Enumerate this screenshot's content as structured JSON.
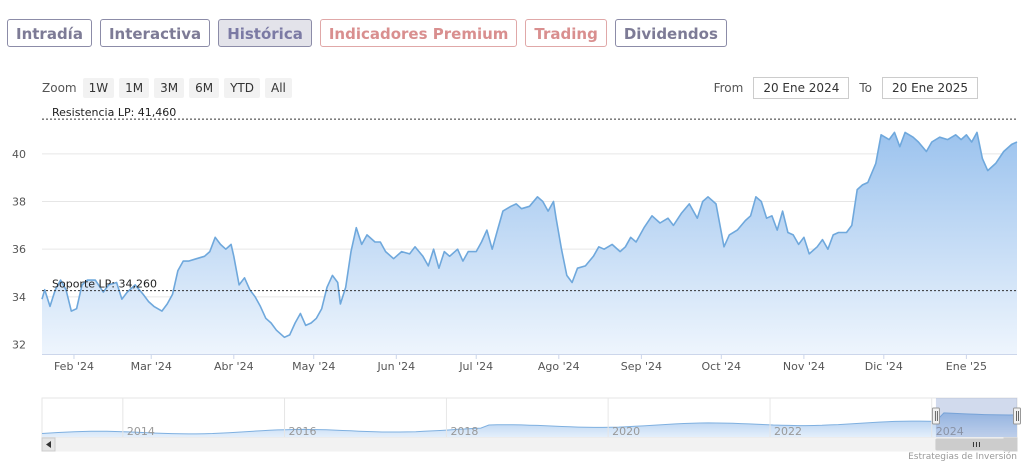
{
  "tabs": [
    {
      "label": "Intradía",
      "kind": "normal"
    },
    {
      "label": "Interactiva",
      "kind": "normal"
    },
    {
      "label": "Histórica",
      "kind": "active"
    },
    {
      "label": "Indicadores Premium",
      "kind": "premium"
    },
    {
      "label": "Trading",
      "kind": "premium"
    },
    {
      "label": "Dividendos",
      "kind": "normal"
    }
  ],
  "zoom": {
    "label": "Zoom",
    "buttons": [
      "1W",
      "1M",
      "3M",
      "6M",
      "YTD",
      "All"
    ]
  },
  "range": {
    "from_label": "From",
    "from_value": "20 Ene 2024",
    "to_label": "To",
    "to_value": "20 Ene 2025"
  },
  "credit": "Estrategias de Inversión",
  "colors": {
    "line": "#6fa8dc",
    "fill_top": "#9cc3ee",
    "fill_bottom": "#eef5fd",
    "plotline": "#333333"
  },
  "chart_data": {
    "type": "area",
    "x_start": "2024-01-20",
    "x_end": "2025-01-20",
    "ylim": [
      31.6,
      41.8
    ],
    "y_ticks": [
      32,
      34,
      36,
      38,
      40
    ],
    "month_labels": [
      {
        "date": "2024-02-01",
        "label": "Feb '24"
      },
      {
        "date": "2024-03-01",
        "label": "Mar '24"
      },
      {
        "date": "2024-04-01",
        "label": "Abr '24"
      },
      {
        "date": "2024-05-01",
        "label": "May '24"
      },
      {
        "date": "2024-06-01",
        "label": "Jun '24"
      },
      {
        "date": "2024-07-01",
        "label": "Jul '24"
      },
      {
        "date": "2024-08-01",
        "label": "Ago '24"
      },
      {
        "date": "2024-09-01",
        "label": "Sep '24"
      },
      {
        "date": "2024-10-01",
        "label": "Oct '24"
      },
      {
        "date": "2024-11-01",
        "label": "Nov '24"
      },
      {
        "date": "2024-12-01",
        "label": "Dic '24"
      },
      {
        "date": "2025-01-01",
        "label": "Ene '25"
      }
    ],
    "plot_lines": [
      {
        "value": 41.46,
        "label": "Resistencia LP: 41,460"
      },
      {
        "value": 34.26,
        "label": "Soporte LP: 34,260"
      }
    ],
    "series": [
      {
        "points": [
          [
            "2024-01-20",
            33.9
          ],
          [
            "2024-01-21",
            34.3
          ],
          [
            "2024-01-23",
            33.6
          ],
          [
            "2024-01-25",
            34.3
          ],
          [
            "2024-01-27",
            34.7
          ],
          [
            "2024-01-29",
            34.3
          ],
          [
            "2024-01-31",
            33.4
          ],
          [
            "2024-02-02",
            33.5
          ],
          [
            "2024-02-04",
            34.5
          ],
          [
            "2024-02-06",
            34.7
          ],
          [
            "2024-02-09",
            34.7
          ],
          [
            "2024-02-12",
            34.2
          ],
          [
            "2024-02-14",
            34.5
          ],
          [
            "2024-02-17",
            34.6
          ],
          [
            "2024-02-19",
            33.9
          ],
          [
            "2024-02-21",
            34.2
          ],
          [
            "2024-02-24",
            34.5
          ],
          [
            "2024-02-27",
            34.1
          ],
          [
            "2024-02-29",
            33.8
          ],
          [
            "2024-03-02",
            33.6
          ],
          [
            "2024-03-05",
            33.4
          ],
          [
            "2024-03-07",
            33.7
          ],
          [
            "2024-03-09",
            34.1
          ],
          [
            "2024-03-11",
            35.1
          ],
          [
            "2024-03-13",
            35.5
          ],
          [
            "2024-03-15",
            35.5
          ],
          [
            "2024-03-18",
            35.6
          ],
          [
            "2024-03-21",
            35.7
          ],
          [
            "2024-03-23",
            35.9
          ],
          [
            "2024-03-25",
            36.5
          ],
          [
            "2024-03-27",
            36.2
          ],
          [
            "2024-03-29",
            36.0
          ],
          [
            "2024-03-31",
            36.2
          ],
          [
            "2024-04-01",
            35.7
          ],
          [
            "2024-04-03",
            34.5
          ],
          [
            "2024-04-05",
            34.8
          ],
          [
            "2024-04-07",
            34.3
          ],
          [
            "2024-04-09",
            34.0
          ],
          [
            "2024-04-11",
            33.6
          ],
          [
            "2024-04-13",
            33.1
          ],
          [
            "2024-04-15",
            32.9
          ],
          [
            "2024-04-17",
            32.6
          ],
          [
            "2024-04-20",
            32.3
          ],
          [
            "2024-04-22",
            32.4
          ],
          [
            "2024-04-24",
            32.9
          ],
          [
            "2024-04-26",
            33.3
          ],
          [
            "2024-04-28",
            32.8
          ],
          [
            "2024-04-30",
            32.9
          ],
          [
            "2024-05-02",
            33.1
          ],
          [
            "2024-05-04",
            33.5
          ],
          [
            "2024-05-06",
            34.4
          ],
          [
            "2024-05-08",
            34.9
          ],
          [
            "2024-05-10",
            34.6
          ],
          [
            "2024-05-11",
            33.7
          ],
          [
            "2024-05-13",
            34.4
          ],
          [
            "2024-05-15",
            35.9
          ],
          [
            "2024-05-17",
            36.9
          ],
          [
            "2024-05-19",
            36.2
          ],
          [
            "2024-05-21",
            36.6
          ],
          [
            "2024-05-24",
            36.3
          ],
          [
            "2024-05-26",
            36.3
          ],
          [
            "2024-05-28",
            35.9
          ],
          [
            "2024-05-31",
            35.6
          ],
          [
            "2024-06-03",
            35.9
          ],
          [
            "2024-06-06",
            35.8
          ],
          [
            "2024-06-08",
            36.1
          ],
          [
            "2024-06-11",
            35.7
          ],
          [
            "2024-06-13",
            35.3
          ],
          [
            "2024-06-15",
            36.0
          ],
          [
            "2024-06-17",
            35.2
          ],
          [
            "2024-06-19",
            35.9
          ],
          [
            "2024-06-21",
            35.7
          ],
          [
            "2024-06-24",
            36.0
          ],
          [
            "2024-06-26",
            35.5
          ],
          [
            "2024-06-28",
            35.9
          ],
          [
            "2024-07-01",
            35.9
          ],
          [
            "2024-07-03",
            36.3
          ],
          [
            "2024-07-05",
            36.8
          ],
          [
            "2024-07-07",
            36.0
          ],
          [
            "2024-07-09",
            36.8
          ],
          [
            "2024-07-11",
            37.6
          ],
          [
            "2024-07-14",
            37.8
          ],
          [
            "2024-07-16",
            37.9
          ],
          [
            "2024-07-18",
            37.7
          ],
          [
            "2024-07-21",
            37.8
          ],
          [
            "2024-07-24",
            38.2
          ],
          [
            "2024-07-26",
            38.0
          ],
          [
            "2024-07-28",
            37.6
          ],
          [
            "2024-07-30",
            38.0
          ],
          [
            "2024-07-31",
            37.3
          ],
          [
            "2024-08-02",
            36.0
          ],
          [
            "2024-08-04",
            34.9
          ],
          [
            "2024-08-06",
            34.6
          ],
          [
            "2024-08-08",
            35.2
          ],
          [
            "2024-08-11",
            35.3
          ],
          [
            "2024-08-14",
            35.7
          ],
          [
            "2024-08-16",
            36.1
          ],
          [
            "2024-08-18",
            36.0
          ],
          [
            "2024-08-21",
            36.2
          ],
          [
            "2024-08-24",
            35.9
          ],
          [
            "2024-08-26",
            36.1
          ],
          [
            "2024-08-28",
            36.5
          ],
          [
            "2024-08-30",
            36.3
          ],
          [
            "2024-09-02",
            36.9
          ],
          [
            "2024-09-05",
            37.4
          ],
          [
            "2024-09-08",
            37.1
          ],
          [
            "2024-09-11",
            37.3
          ],
          [
            "2024-09-13",
            37.0
          ],
          [
            "2024-09-16",
            37.5
          ],
          [
            "2024-09-19",
            37.9
          ],
          [
            "2024-09-22",
            37.3
          ],
          [
            "2024-09-24",
            38.0
          ],
          [
            "2024-09-26",
            38.2
          ],
          [
            "2024-09-29",
            37.9
          ],
          [
            "2024-10-02",
            36.1
          ],
          [
            "2024-10-04",
            36.6
          ],
          [
            "2024-10-07",
            36.8
          ],
          [
            "2024-10-10",
            37.2
          ],
          [
            "2024-10-12",
            37.4
          ],
          [
            "2024-10-14",
            38.2
          ],
          [
            "2024-10-16",
            38.0
          ],
          [
            "2024-10-18",
            37.3
          ],
          [
            "2024-10-20",
            37.4
          ],
          [
            "2024-10-22",
            36.8
          ],
          [
            "2024-10-24",
            37.6
          ],
          [
            "2024-10-26",
            36.7
          ],
          [
            "2024-10-28",
            36.6
          ],
          [
            "2024-10-30",
            36.2
          ],
          [
            "2024-11-01",
            36.5
          ],
          [
            "2024-11-03",
            35.8
          ],
          [
            "2024-11-06",
            36.1
          ],
          [
            "2024-11-08",
            36.4
          ],
          [
            "2024-11-10",
            36.0
          ],
          [
            "2024-11-12",
            36.6
          ],
          [
            "2024-11-14",
            36.7
          ],
          [
            "2024-11-17",
            36.7
          ],
          [
            "2024-11-19",
            37.0
          ],
          [
            "2024-11-21",
            38.5
          ],
          [
            "2024-11-23",
            38.7
          ],
          [
            "2024-11-25",
            38.8
          ],
          [
            "2024-11-28",
            39.6
          ],
          [
            "2024-11-30",
            40.8
          ],
          [
            "2024-12-03",
            40.6
          ],
          [
            "2024-12-05",
            40.9
          ],
          [
            "2024-12-07",
            40.3
          ],
          [
            "2024-12-09",
            40.9
          ],
          [
            "2024-12-12",
            40.7
          ],
          [
            "2024-12-14",
            40.5
          ],
          [
            "2024-12-17",
            40.1
          ],
          [
            "2024-12-19",
            40.5
          ],
          [
            "2024-12-22",
            40.7
          ],
          [
            "2024-12-25",
            40.6
          ],
          [
            "2024-12-28",
            40.8
          ],
          [
            "2024-12-30",
            40.6
          ],
          [
            "2025-01-01",
            40.8
          ],
          [
            "2025-01-03",
            40.5
          ],
          [
            "2025-01-05",
            40.9
          ],
          [
            "2025-01-07",
            39.8
          ],
          [
            "2025-01-09",
            39.3
          ],
          [
            "2025-01-12",
            39.6
          ],
          [
            "2025-01-15",
            40.1
          ],
          [
            "2025-01-18",
            40.4
          ],
          [
            "2025-01-20",
            40.5
          ]
        ]
      }
    ],
    "navigator": {
      "year_labels": [
        "2014",
        "2016",
        "2018",
        "2020",
        "2022",
        "2024"
      ],
      "x_start": "2013-01-01",
      "x_end": "2025-01-20",
      "selection": [
        "2024-01-20",
        "2025-01-20"
      ]
    }
  }
}
